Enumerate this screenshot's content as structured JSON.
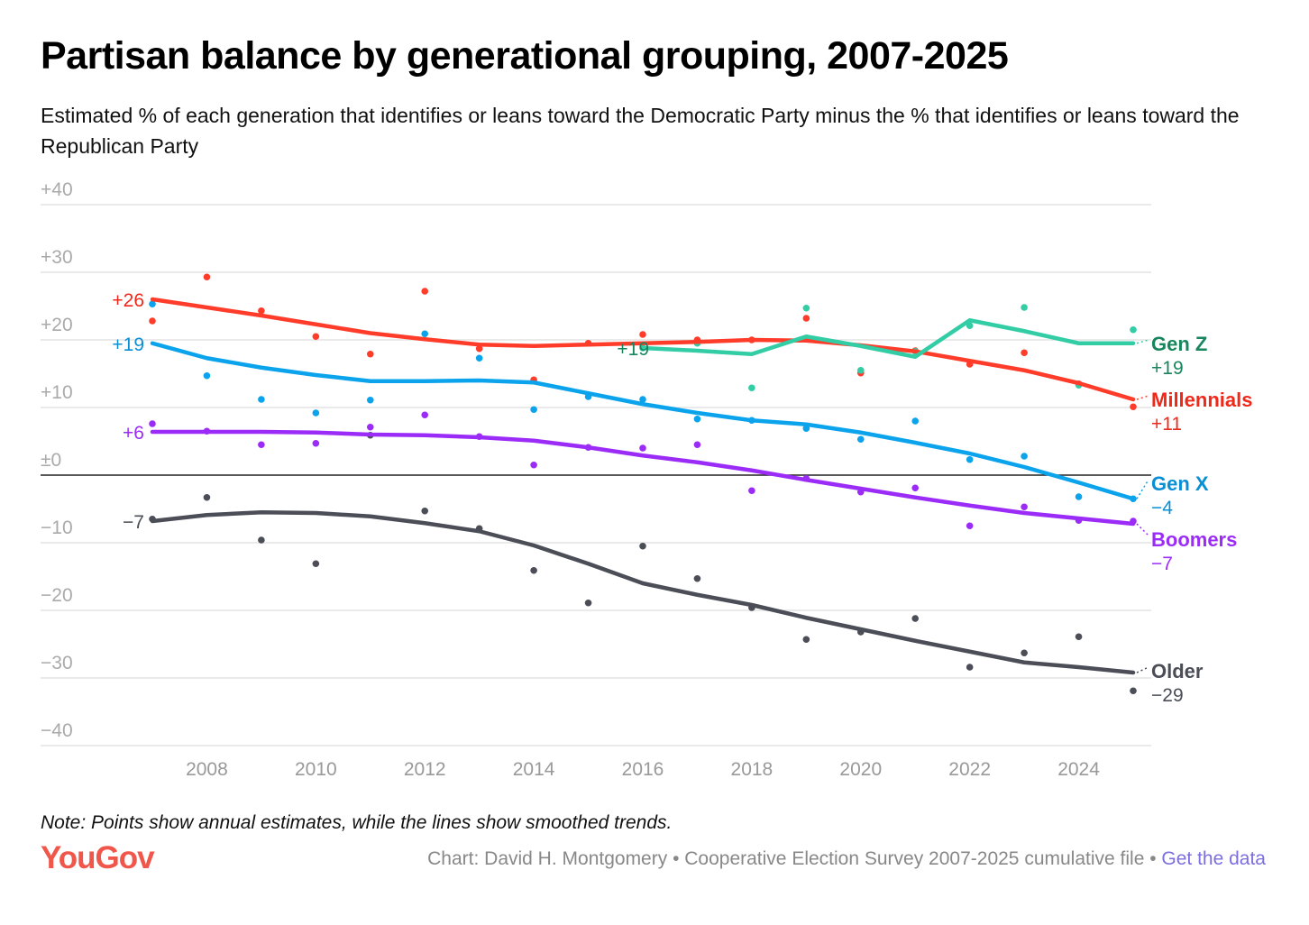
{
  "title": "Partisan balance by generational grouping, 2007-2025",
  "subtitle": "Estimated % of each generation that identifies or leans toward the Democratic Party minus the % that identifies or leans toward the Republican Party",
  "note": "Note: Points show annual estimates, while the lines show smoothed trends.",
  "logo": "YouGov",
  "credit": "Chart: David H. Montgomery • Cooperative Election Survey 2007-2025 cumulative file •",
  "get_data": "Get the data",
  "chart_data": {
    "type": "line",
    "title": "Partisan balance by generational grouping, 2007-2025",
    "ylim": [
      -40,
      40
    ],
    "xlim": [
      2007,
      2025
    ],
    "y_ticks": [
      40,
      30,
      20,
      10,
      0,
      -10,
      -20,
      -30,
      -40
    ],
    "y_tick_labels": [
      "+40",
      "+30",
      "+20",
      "+10",
      "±0",
      "−10",
      "−20",
      "−30",
      "−40"
    ],
    "x_ticks": [
      2008,
      2010,
      2012,
      2014,
      2016,
      2018,
      2020,
      2022,
      2024
    ],
    "x_tick_labels": [
      "2008",
      "2010",
      "2012",
      "2014",
      "2016",
      "2018",
      "2020",
      "2022",
      "2024"
    ],
    "grid": true,
    "series": [
      {
        "name": "Older",
        "color": "#4b4d57",
        "label_color": "#4b4d57",
        "end_label": "−29",
        "start_label": "−7",
        "x": [
          2007,
          2008,
          2009,
          2010,
          2011,
          2012,
          2013,
          2014,
          2015,
          2016,
          2017,
          2018,
          2019,
          2020,
          2021,
          2022,
          2023,
          2024,
          2025
        ],
        "trend": [
          -6.8,
          -5.9,
          -5.5,
          -5.6,
          -6.1,
          -7.1,
          -8.3,
          -10.4,
          -13.1,
          -16,
          -17.7,
          -19.2,
          -21.1,
          -22.8,
          -24.5,
          -26.1,
          -27.7,
          -28.4,
          -29.2
        ],
        "points": [
          -6.5,
          -3.3,
          -9.6,
          -13.1,
          5.9,
          -5.3,
          -7.9,
          -14.1,
          -18.9,
          -10.5,
          -15.3,
          -19.6,
          -24.3,
          -23.2,
          -21.2,
          -28.4,
          -26.3,
          -23.9,
          -31.9
        ]
      },
      {
        "name": "Boomers",
        "color": "#9b2cf7",
        "label_color": "#9b2cf7",
        "end_label": "−7",
        "start_label": "+6",
        "x": [
          2007,
          2008,
          2009,
          2010,
          2011,
          2012,
          2013,
          2014,
          2015,
          2016,
          2017,
          2018,
          2019,
          2020,
          2021,
          2022,
          2023,
          2024,
          2025
        ],
        "trend": [
          6.4,
          6.4,
          6.4,
          6.3,
          6,
          5.9,
          5.6,
          5.1,
          4.1,
          2.9,
          1.9,
          0.7,
          -0.7,
          -2,
          -3.3,
          -4.5,
          -5.6,
          -6.4,
          -7.2
        ],
        "points": [
          7.6,
          6.5,
          4.5,
          4.7,
          7.1,
          8.9,
          5.7,
          1.5,
          4.1,
          4,
          4.5,
          -2.3,
          -0.5,
          -2.5,
          -1.9,
          -7.5,
          -4.7,
          -6.7,
          -6.8
        ]
      },
      {
        "name": "Gen X",
        "color": "#0aa3ec",
        "label_color": "#0a8fd4",
        "end_label": "−4",
        "start_label": "+19",
        "x": [
          2007,
          2008,
          2009,
          2010,
          2011,
          2012,
          2013,
          2014,
          2015,
          2016,
          2017,
          2018,
          2019,
          2020,
          2021,
          2022,
          2023,
          2024,
          2025
        ],
        "trend": [
          19.5,
          17.3,
          15.9,
          14.8,
          13.9,
          13.9,
          14,
          13.7,
          12.1,
          10.5,
          9.2,
          8.1,
          7.5,
          6.3,
          4.8,
          3.2,
          1.2,
          -1.1,
          -3.5
        ],
        "points": [
          25.3,
          14.7,
          11.2,
          9.2,
          11.1,
          20.9,
          17.3,
          9.7,
          11.6,
          11.2,
          8.3,
          8.1,
          6.9,
          5.3,
          8,
          2.3,
          2.8,
          -3.2,
          -3.5
        ]
      },
      {
        "name": "Millennials",
        "color": "#ff3b2a",
        "label_color": "#f0281a",
        "end_label": "+11",
        "start_label": "+26",
        "x": [
          2007,
          2008,
          2009,
          2010,
          2011,
          2012,
          2013,
          2014,
          2015,
          2016,
          2017,
          2018,
          2019,
          2020,
          2021,
          2022,
          2023,
          2024,
          2025
        ],
        "trend": [
          26,
          24.8,
          23.6,
          22.3,
          21,
          20.1,
          19.3,
          19.1,
          19.3,
          19.5,
          19.7,
          20,
          19.9,
          19.2,
          18.3,
          16.9,
          15.5,
          13.6,
          11.2
        ],
        "points": [
          22.8,
          29.3,
          24.3,
          20.5,
          17.9,
          27.2,
          18.7,
          14.1,
          19.5,
          20.8,
          20,
          20,
          23.2,
          15.1,
          18.4,
          16.4,
          18.1,
          13.5,
          10.1
        ]
      },
      {
        "name": "Gen Z",
        "color": "#32cca5",
        "label_color": "#17865e",
        "end_label": "+19",
        "start_label": "+19",
        "x": [
          2016,
          2017,
          2018,
          2019,
          2020,
          2021,
          2022,
          2023,
          2024,
          2025
        ],
        "trend": [
          18.8,
          18.4,
          17.9,
          20.5,
          19.1,
          17.5,
          22.9,
          21.3,
          19.5,
          19.5
        ],
        "points": [
          18.8,
          19.5,
          12.9,
          24.7,
          15.5,
          18.3,
          22.1,
          24.8,
          13.3,
          21.5
        ]
      }
    ]
  }
}
